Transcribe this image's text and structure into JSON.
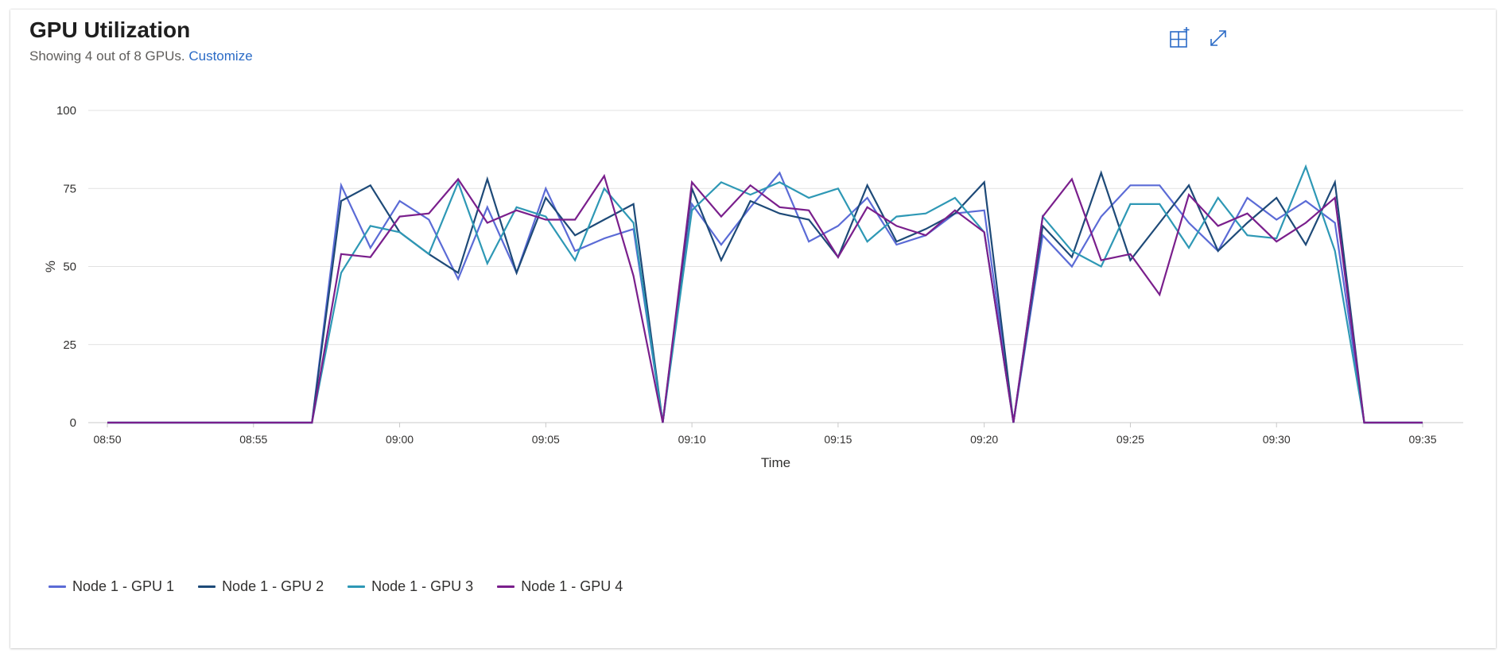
{
  "header": {
    "title": "GPU Utilization",
    "subtitle_text": "Showing 4 out of 8 GPUs.",
    "subtitle_link": "Customize"
  },
  "toolbar": {
    "pin_icon": "pin-to-dashboard-icon",
    "expand_icon": "expand-icon"
  },
  "colors": {
    "accent": "#2b6bc6",
    "grid": "#e1e1e1",
    "axis": "#c8c8c8",
    "text": "#323130"
  },
  "chart_data": {
    "type": "line",
    "xlabel": "Time",
    "ylabel": "%",
    "ylim": [
      0,
      100
    ],
    "yticks": [
      0,
      25,
      50,
      75,
      100
    ],
    "xticks": [
      "08:50",
      "08:55",
      "09:00",
      "09:05",
      "09:10",
      "09:15",
      "09:20",
      "09:25",
      "09:30",
      "09:35"
    ],
    "grid": true,
    "legend_position": "bottom-left",
    "x": [
      "08:50",
      "08:51",
      "08:52",
      "08:53",
      "08:54",
      "08:55",
      "08:56",
      "08:57",
      "08:58",
      "08:59",
      "09:00",
      "09:01",
      "09:02",
      "09:03",
      "09:04",
      "09:05",
      "09:06",
      "09:07",
      "09:08",
      "09:09",
      "09:10",
      "09:11",
      "09:12",
      "09:13",
      "09:14",
      "09:15",
      "09:16",
      "09:17",
      "09:18",
      "09:19",
      "09:20",
      "09:21",
      "09:22",
      "09:23",
      "09:24",
      "09:25",
      "09:26",
      "09:27",
      "09:28",
      "09:29",
      "09:30",
      "09:31",
      "09:32",
      "09:33",
      "09:34",
      "09:35"
    ],
    "series": [
      {
        "name": "Node 1 - GPU 1",
        "color": "#5b6bd6",
        "values": [
          0,
          0,
          0,
          0,
          0,
          0,
          0,
          0,
          76,
          56,
          71,
          65,
          46,
          69,
          48,
          75,
          55,
          59,
          62,
          0,
          70,
          57,
          69,
          80,
          58,
          63,
          72,
          57,
          60,
          67,
          68,
          0,
          60,
          50,
          66,
          76,
          76,
          64,
          55,
          72,
          65,
          71,
          64,
          0,
          0,
          0
        ]
      },
      {
        "name": "Node 1 - GPU 2",
        "color": "#1e4a78",
        "values": [
          0,
          0,
          0,
          0,
          0,
          0,
          0,
          0,
          71,
          76,
          61,
          54,
          48,
          78,
          48,
          72,
          60,
          65,
          70,
          0,
          75,
          52,
          71,
          67,
          65,
          53,
          76,
          58,
          62,
          67,
          77,
          0,
          63,
          53,
          80,
          52,
          64,
          76,
          55,
          64,
          72,
          57,
          77,
          0,
          0,
          0
        ]
      },
      {
        "name": "Node 1 - GPU 3",
        "color": "#2e98b5",
        "values": [
          0,
          0,
          0,
          0,
          0,
          0,
          0,
          0,
          48,
          63,
          61,
          54,
          77,
          51,
          69,
          66,
          52,
          75,
          64,
          0,
          68,
          77,
          73,
          77,
          72,
          75,
          58,
          66,
          67,
          72,
          61,
          0,
          66,
          55,
          50,
          70,
          70,
          56,
          72,
          60,
          59,
          82,
          55,
          0,
          0,
          0
        ]
      },
      {
        "name": "Node 1 - GPU 4",
        "color": "#7a1f8c",
        "values": [
          0,
          0,
          0,
          0,
          0,
          0,
          0,
          0,
          54,
          53,
          66,
          67,
          78,
          64,
          68,
          65,
          65,
          79,
          47,
          0,
          77,
          66,
          76,
          69,
          68,
          53,
          69,
          63,
          60,
          68,
          61,
          0,
          66,
          78,
          52,
          54,
          41,
          73,
          63,
          67,
          58,
          64,
          72,
          0,
          0,
          0
        ]
      }
    ]
  }
}
